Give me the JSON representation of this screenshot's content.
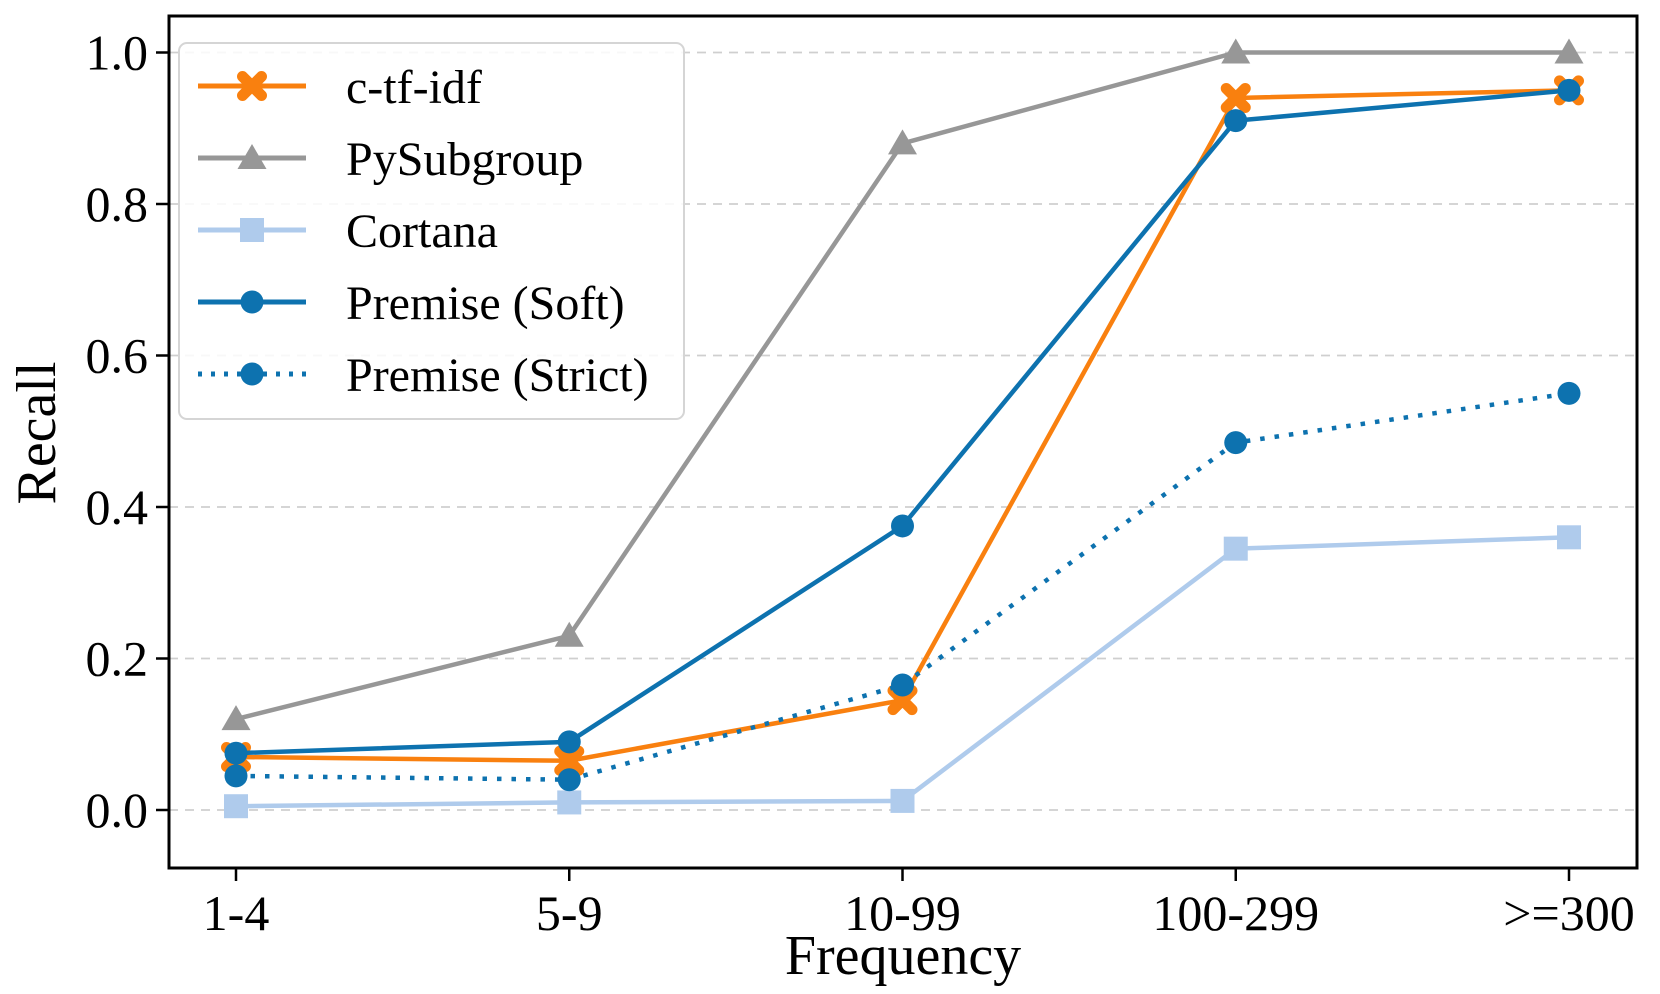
{
  "chart_data": {
    "type": "line",
    "title": "",
    "xlabel": "Frequency",
    "ylabel": "Recall",
    "categories": [
      "1-4",
      "5-9",
      "10-99",
      "100-299",
      ">=300"
    ],
    "y_ticks": [
      "0.0",
      "0.2",
      "0.4",
      "0.6",
      "0.8",
      "1.0"
    ],
    "ylim": [
      -0.077,
      1.048
    ],
    "grid": "horizontal-dashed",
    "grid_color": "#cfcfcf",
    "legend_position": "upper-left",
    "series": [
      {
        "name": "c-tf-idf",
        "color": "#F9800F",
        "marker": "x-marker",
        "line_style": "solid",
        "values": [
          0.07,
          0.065,
          0.145,
          0.94,
          0.95
        ]
      },
      {
        "name": "PySubgroup",
        "color": "#979797",
        "marker": "triangle-marker",
        "line_style": "solid",
        "values": [
          0.12,
          0.23,
          0.88,
          1.0,
          1.0
        ]
      },
      {
        "name": "Cortana",
        "color": "#AFCBEC",
        "marker": "square-marker",
        "line_style": "solid",
        "values": [
          0.005,
          0.01,
          0.012,
          0.345,
          0.36
        ]
      },
      {
        "name": "Premise (Soft)",
        "color": "#0D72AF",
        "marker": "circle-marker",
        "line_style": "solid",
        "values": [
          0.075,
          0.09,
          0.375,
          0.91,
          0.95
        ]
      },
      {
        "name": "Premise (Strict)",
        "color": "#0D72AF",
        "marker": "circle-marker",
        "line_style": "dotted",
        "values": [
          0.045,
          0.04,
          0.165,
          0.485,
          0.55
        ]
      }
    ]
  }
}
